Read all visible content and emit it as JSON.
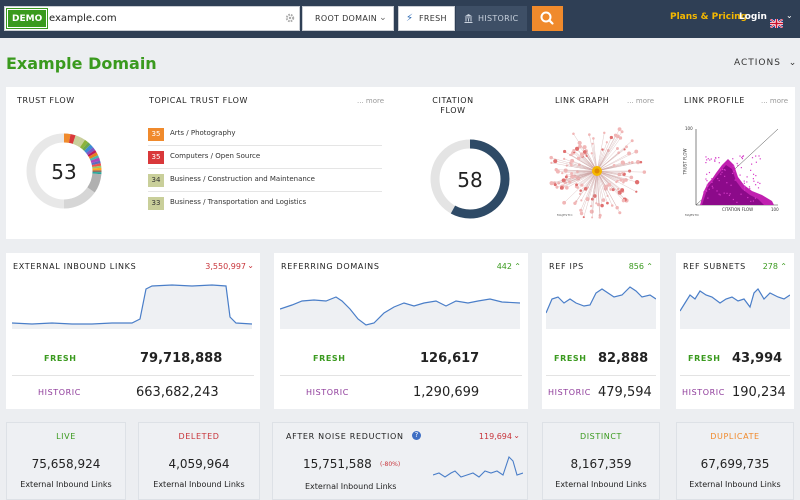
{
  "header": {
    "demo_badge": "DEMO",
    "search_value": "example.com",
    "scope_label": "ROOT DOMAIN",
    "fresh_label": "FRESH",
    "historic_label": "HISTORIC",
    "plans_label": "Plans & Pricing",
    "login_label": "Login"
  },
  "page": {
    "title": "Example Domain",
    "actions_label": "ACTIONS"
  },
  "summary": {
    "trust_flow_label": "TRUST FLOW",
    "trust_flow_value": "53",
    "topical_label": "TOPICAL TRUST FLOW",
    "more_label": "... more",
    "topics": [
      {
        "score": "35",
        "name": "Arts / Photography",
        "color": "#f08a2c"
      },
      {
        "score": "35",
        "name": "Computers / Open Source",
        "color": "#d9383a"
      },
      {
        "score": "34",
        "name": "Business / Construction and Maintenance",
        "color": "#c9cf9a"
      },
      {
        "score": "33",
        "name": "Business / Transportation and Logistics",
        "color": "#c9cf9a"
      }
    ],
    "citation_label_1": "CITATION",
    "citation_label_2": "FLOW",
    "citation_value": "58",
    "link_graph_label": "LINK GRAPH",
    "link_profile_label": "LINK PROFILE",
    "lp_y_top": "100",
    "lp_x_right": "100",
    "lp_y_axis": "TRUST FLOW",
    "lp_x_axis": "CITATION FLOW",
    "majestic_mark": "MAJESTIC"
  },
  "stats": {
    "fresh_label": "FRESH",
    "historic_label": "HISTORIC",
    "ebl": {
      "title": "EXTERNAL INBOUND LINKS",
      "delta": "3,550,997",
      "fresh": "79,718,888",
      "historic": "663,682,243"
    },
    "rd": {
      "title": "REFERRING DOMAINS",
      "delta": "442",
      "fresh": "126,617",
      "historic": "1,290,699"
    },
    "ips": {
      "title": "REF IPS",
      "delta": "856",
      "fresh": "82,888",
      "historic": "479,594"
    },
    "subnets": {
      "title": "REF SUBNETS",
      "delta": "278",
      "fresh": "43,994",
      "historic": "190,234"
    }
  },
  "bottom": {
    "sub_label": "External Inbound Links",
    "live": {
      "title": "LIVE",
      "value": "75,658,924"
    },
    "deleted": {
      "title": "DELETED",
      "value": "4,059,964"
    },
    "noise": {
      "title": "AFTER NOISE REDUCTION",
      "delta": "119,694",
      "value": "15,751,588",
      "pct": "(-80%)"
    },
    "distinct": {
      "title": "DISTINCT",
      "value": "8,167,359"
    },
    "duplicate": {
      "title": "DUPLICATE",
      "value": "67,699,735"
    }
  },
  "colors": {
    "green": "#3a9a1e",
    "red": "#c8353b",
    "purple": "#8e3a9a",
    "orange": "#f08a2c",
    "navy": "#2f3f55",
    "citation": "#2e4a66",
    "sparkline": "#4a7ec8"
  }
}
